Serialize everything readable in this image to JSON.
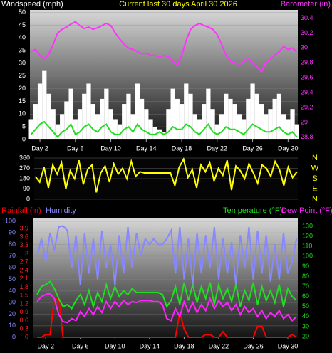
{
  "chart_data": [
    {
      "type": "line",
      "title": "Current last 30 days April 30 2026",
      "ylabel": "Windspeed (mph)",
      "y2label": "Barometer (in)",
      "x": [
        1,
        1.5,
        2,
        2.5,
        3,
        3.5,
        4,
        4.5,
        5,
        5.5,
        6,
        6.5,
        7,
        7.5,
        8,
        8.5,
        9,
        9.5,
        10,
        10.5,
        11,
        11.5,
        12,
        12.5,
        13,
        13.5,
        14,
        14.5,
        15,
        15.5,
        16,
        16.5,
        17,
        17.5,
        18,
        18.5,
        19,
        19.5,
        20,
        20.5,
        21,
        21.5,
        22,
        22.5,
        23,
        23.5,
        24,
        24.5,
        25,
        25.5,
        26,
        26.5,
        27,
        27.5,
        28,
        28.5,
        29,
        29.5,
        30,
        30.5,
        31
      ],
      "xlim": [
        0.87,
        31.1
      ],
      "xticks": [
        {
          "value": 2,
          "label": "Day 2"
        },
        {
          "value": 6,
          "label": "Day 6"
        },
        {
          "value": 10,
          "label": "Day 10"
        },
        {
          "value": 14,
          "label": "Day 14"
        },
        {
          "value": 18,
          "label": "Day 18"
        },
        {
          "value": 22,
          "label": "Day 22"
        },
        {
          "value": 26,
          "label": "Day 26"
        },
        {
          "value": 30,
          "label": "Day 30"
        }
      ],
      "ylim": [
        0,
        51
      ],
      "yticks": [
        0,
        5,
        10,
        15,
        20,
        25,
        30,
        35,
        40,
        45,
        50
      ],
      "y2lim": [
        28.77,
        30.51
      ],
      "y2ticks": [
        28.8,
        29,
        29.2,
        29.4,
        29.6,
        29.8,
        30,
        30.2,
        30.4
      ],
      "tick_colors": {
        "y": "#ffffff",
        "y2": "#ff33ff"
      },
      "title_color": "#ffff00",
      "grid": true,
      "series": [
        {
          "style": "bar",
          "color": "#ffffff",
          "axis": "y",
          "values": [
            8,
            14,
            22,
            27,
            18,
            12,
            6,
            10,
            15,
            20,
            8,
            12,
            18,
            22,
            14,
            10,
            16,
            20,
            12,
            8,
            6,
            14,
            18,
            10,
            22,
            16,
            12,
            8,
            5,
            4,
            3,
            12,
            20,
            16,
            14,
            22,
            18,
            10,
            8,
            14,
            20,
            12,
            6,
            10,
            18,
            16,
            14,
            10,
            8,
            16,
            22,
            18,
            14,
            10,
            12,
            16,
            18,
            10,
            8,
            12,
            6
          ]
        },
        {
          "style": "line",
          "color": "#22dd22",
          "axis": "y",
          "values": [
            2,
            4,
            6,
            7,
            5,
            3,
            1,
            3,
            4,
            6,
            2,
            3,
            5,
            6,
            4,
            3,
            5,
            6,
            3,
            2,
            2,
            4,
            5,
            3,
            6,
            4,
            3,
            2,
            2,
            3,
            2,
            3,
            5,
            4,
            4,
            6,
            5,
            3,
            2,
            4,
            6,
            3,
            2,
            3,
            5,
            4,
            4,
            3,
            2,
            4,
            6,
            5,
            4,
            3,
            3,
            4,
            5,
            3,
            2,
            3,
            1
          ]
        },
        {
          "style": "line",
          "color": "#ff33ff",
          "axis": "y2",
          "values": [
            29.95,
            29.98,
            29.9,
            29.85,
            29.92,
            30.05,
            30.2,
            30.25,
            30.28,
            30.32,
            30.35,
            30.3,
            30.26,
            30.28,
            30.25,
            30.27,
            30.3,
            30.33,
            30.3,
            30.2,
            30.12,
            30.05,
            30.0,
            29.98,
            29.95,
            29.92,
            29.93,
            29.9,
            29.9,
            29.88,
            29.9,
            29.88,
            29.82,
            29.76,
            29.9,
            30.1,
            30.25,
            30.3,
            30.33,
            30.3,
            30.28,
            30.25,
            30.18,
            30.05,
            29.9,
            29.82,
            29.8,
            29.78,
            29.82,
            29.85,
            29.8,
            29.75,
            29.68,
            29.8,
            29.85,
            29.9,
            29.95,
            30.02,
            29.98,
            30.0,
            29.95
          ]
        }
      ]
    },
    {
      "type": "line",
      "x": [
        1,
        1.5,
        2,
        2.5,
        3,
        3.5,
        4,
        4.5,
        5,
        5.5,
        6,
        6.5,
        7,
        7.5,
        8,
        8.5,
        9,
        9.5,
        10,
        10.5,
        11,
        11.5,
        12,
        12.5,
        13,
        13.5,
        14,
        14.5,
        15,
        15.5,
        16,
        16.5,
        17,
        17.5,
        18,
        18.5,
        19,
        19.5,
        20,
        20.5,
        21,
        21.5,
        22,
        22.5,
        23,
        23.5,
        24,
        24.5,
        25,
        25.5,
        26,
        26.5,
        27,
        27.5,
        28,
        28.5,
        29,
        29.5,
        30,
        30.5,
        31
      ],
      "xlim": [
        0.87,
        31.1
      ],
      "ylim": [
        0,
        360
      ],
      "yticks": [
        0,
        90,
        180,
        270,
        360
      ],
      "y2lim": [
        0,
        360
      ],
      "y2ticks": [
        {
          "value": 0,
          "label": "N"
        },
        {
          "value": 90,
          "label": "E"
        },
        {
          "value": 180,
          "label": "S"
        },
        {
          "value": 270,
          "label": "W"
        },
        {
          "value": 360,
          "label": "N"
        }
      ],
      "tick_colors": {
        "y": "#ffffff",
        "y2": "#ffff00"
      },
      "grid": true,
      "series": [
        {
          "style": "line",
          "color": "#ffff00",
          "axis": "y",
          "values": [
            200,
            150,
            280,
            100,
            300,
            220,
            320,
            90,
            250,
            180,
            340,
            130,
            260,
            300,
            60,
            230,
            290,
            150,
            310,
            220,
            270,
            180,
            330,
            200,
            240,
            230,
            230,
            230,
            230,
            230,
            230,
            230,
            120,
            280,
            350,
            190,
            260,
            100,
            300,
            240,
            320,
            160,
            270,
            210,
            340,
            80,
            290,
            250,
            180,
            310,
            230,
            140,
            300,
            270,
            200,
            330,
            260,
            120,
            280,
            190,
            240
          ]
        }
      ]
    },
    {
      "type": "line",
      "x": [
        1,
        1.5,
        2,
        2.5,
        3,
        3.5,
        4,
        4.5,
        5,
        5.5,
        6,
        6.5,
        7,
        7.5,
        8,
        8.5,
        9,
        9.5,
        10,
        10.5,
        11,
        11.5,
        12,
        12.5,
        13,
        13.5,
        14,
        14.5,
        15,
        15.5,
        16,
        16.5,
        17,
        17.5,
        18,
        18.5,
        19,
        19.5,
        20,
        20.5,
        21,
        21.5,
        22,
        22.5,
        23,
        23.5,
        24,
        24.5,
        25,
        25.5,
        26,
        26.5,
        27,
        27.5,
        28,
        28.5,
        29,
        29.5,
        30,
        30.5,
        31
      ],
      "xlim": [
        0.5,
        31.15
      ],
      "xticks": [
        {
          "value": 2,
          "label": "Day 2"
        },
        {
          "value": 6,
          "label": "Day 6"
        },
        {
          "value": 10,
          "label": "Day 10"
        },
        {
          "value": 14,
          "label": "Day 14"
        },
        {
          "value": 18,
          "label": "Day 18"
        },
        {
          "value": 22,
          "label": "Day 22"
        },
        {
          "value": 26,
          "label": "Day 26"
        },
        {
          "value": 30,
          "label": "Day 30"
        }
      ],
      "ylim": [
        0,
        103
      ],
      "yticks": [
        0,
        10,
        20,
        30,
        40,
        50,
        60,
        70,
        80,
        90,
        100
      ],
      "y3lim": [
        0,
        4.29
      ],
      "y3ticks": [
        0,
        0.3,
        0.6,
        0.9,
        1.2,
        1.5,
        1.8,
        2.1,
        2.4,
        2.7,
        3,
        3.3,
        3.6,
        3.9
      ],
      "y2lim": [
        19.3,
        138.6
      ],
      "y2ticks": [
        20,
        30,
        40,
        50,
        60,
        70,
        80,
        90,
        100,
        110,
        120,
        130
      ],
      "tick_colors": {
        "y": "#8888ff",
        "y3": "#ff2222",
        "y2": "#22dd22"
      },
      "grid": true,
      "series": [
        {
          "name": "Rainfall (in)",
          "style": "line",
          "color": "#ff0000",
          "axis": "y3",
          "values": [
            0,
            0,
            0.1,
            0.1,
            1.4,
            1.4,
            0,
            0,
            0,
            0,
            0,
            0,
            0,
            0,
            0,
            0,
            0,
            0,
            0,
            0,
            0,
            0,
            0,
            0,
            0,
            0,
            0,
            0,
            0,
            0,
            0,
            0,
            0,
            0.9,
            0.3,
            0,
            0,
            0,
            0,
            0.1,
            0.1,
            0,
            0,
            0.2,
            0,
            0,
            0,
            0,
            0,
            0,
            0,
            0.4,
            0.4,
            0,
            0,
            0,
            0,
            0,
            0,
            0.1,
            0
          ]
        },
        {
          "name": "Humidity",
          "style": "line",
          "color": "#8888ff",
          "axis": "y",
          "values": [
            70,
            85,
            65,
            90,
            75,
            95,
            96,
            92,
            60,
            88,
            45,
            90,
            55,
            85,
            50,
            92,
            60,
            80,
            45,
            88,
            55,
            95,
            60,
            90,
            70,
            85,
            80,
            85,
            80,
            80,
            85,
            92,
            55,
            95,
            50,
            85,
            45,
            90,
            55,
            88,
            60,
            95,
            50,
            85,
            55,
            82,
            45,
            88,
            60,
            95,
            50,
            92,
            55,
            88,
            48,
            80,
            50,
            90,
            55,
            65,
            85
          ]
        },
        {
          "name": "Temperature (°F)",
          "style": "line",
          "color": "#22dd22",
          "axis": "y2",
          "values": [
            62,
            70,
            72,
            75,
            68,
            58,
            50,
            52,
            48,
            56,
            62,
            52,
            66,
            50,
            64,
            55,
            72,
            58,
            70,
            60,
            66,
            62,
            68,
            64,
            64,
            64,
            64,
            64,
            64,
            62,
            50,
            56,
            70,
            52,
            74,
            56,
            72,
            54,
            70,
            58,
            74,
            52,
            72,
            58,
            68,
            55,
            72,
            50,
            66,
            56,
            74,
            52,
            70,
            56,
            66,
            54,
            72,
            50,
            68,
            60,
            56
          ]
        },
        {
          "name": "Dew Point (°F)",
          "style": "line",
          "color": "#ff22ff",
          "axis": "y2",
          "values": [
            55,
            60,
            62,
            63,
            58,
            42,
            35,
            34,
            38,
            36,
            45,
            40,
            48,
            42,
            50,
            44,
            55,
            48,
            55,
            50,
            56,
            52,
            55,
            54,
            56,
            56,
            56,
            55,
            55,
            52,
            38,
            36,
            48,
            40,
            55,
            45,
            54,
            44,
            52,
            46,
            58,
            48,
            56,
            50,
            54,
            46,
            52,
            42,
            50,
            44,
            48,
            40,
            46,
            38,
            44,
            40,
            46,
            38,
            42,
            36,
            40
          ]
        }
      ]
    }
  ]
}
